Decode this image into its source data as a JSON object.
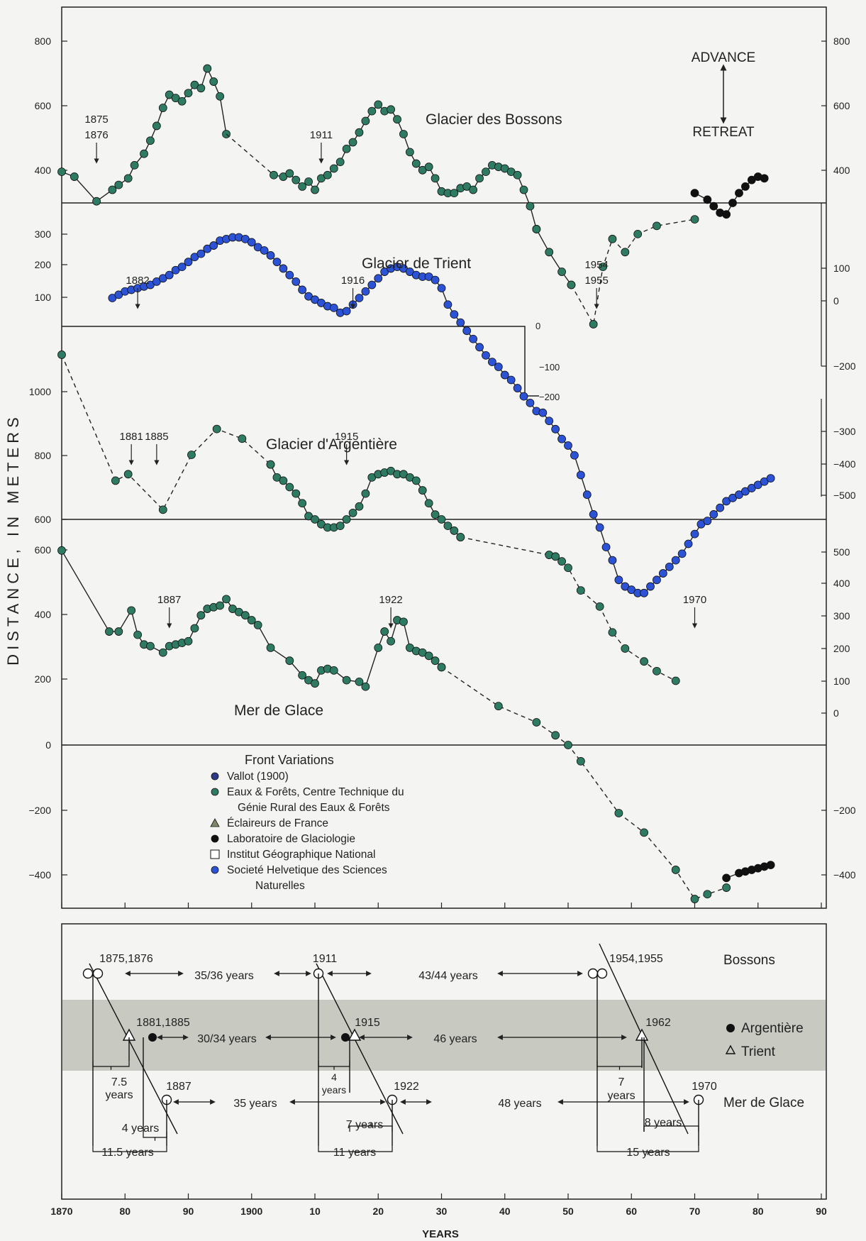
{
  "chart_data": {
    "type": "line",
    "ylabel": "DISTANCE, IN METERS",
    "xlabel": "YEARS",
    "x_ticks": [
      "1870",
      "80",
      "90",
      "1900",
      "10",
      "20",
      "30",
      "40",
      "50",
      "60",
      "70",
      "80",
      "90"
    ],
    "advance_label": "ADVANCE",
    "retreat_label": "RETREAT",
    "legend_title": "Front Variations",
    "legend": [
      {
        "name": "Vallot (1900)",
        "color": "#2d3a86",
        "marker": "dot"
      },
      {
        "name": "Eaux & Forêts, Centre Technique du",
        "name2": "Génie Rural des Eaux & Forêts",
        "color": "#2e7a62",
        "marker": "dot"
      },
      {
        "name": "Éclaireurs de France",
        "color": "#7d8a6a",
        "marker": "triangle"
      },
      {
        "name": "Laboratoire de Glaciologie",
        "color": "#111111",
        "marker": "dot"
      },
      {
        "name": "Institut Géographique National",
        "color": "#ffffff",
        "marker": "square"
      },
      {
        "name": "Societé Helvetique des Sciences",
        "name2": "Naturelles",
        "color": "#2c52d6",
        "marker": "dot"
      }
    ],
    "panels": [
      {
        "name": "Glacier des Bossons",
        "left_ticks": [
          "800",
          "600",
          "400"
        ],
        "right_ticks": [
          "800",
          "600",
          "400"
        ],
        "annotations": [
          {
            "text": "1875",
            "text2": "1876",
            "x": 1875.5
          },
          {
            "text": "1911",
            "x": 1911
          }
        ],
        "series": [
          {
            "x": [
              1870,
              1872,
              1875.5,
              1878,
              1879,
              1880.5,
              1881.5,
              1883,
              1884,
              1885,
              1886,
              1887,
              1888,
              1889,
              1890,
              1891,
              1892,
              1893,
              1894,
              1895,
              1896
            ],
            "y": [
              405,
              390,
              315,
              350,
              365,
              385,
              425,
              460,
              500,
              545,
              600,
              640,
              630,
              620,
              645,
              670,
              660,
              720,
              680,
              635,
              520
            ],
            "style": "solid",
            "color": "#2e7a62"
          },
          {
            "x": [
              1896,
              1903.5
            ],
            "y": [
              520,
              395
            ],
            "style": "dashed"
          },
          {
            "x": [
              1903.5,
              1905,
              1906,
              1907,
              1908,
              1909,
              1910,
              1911,
              1912,
              1913,
              1914,
              1915,
              1916,
              1917,
              1918,
              1919,
              1920,
              1921,
              1922,
              1923,
              1924,
              1925,
              1926,
              1927,
              1928,
              1929,
              1930,
              1931,
              1932,
              1933,
              1934,
              1935,
              1936,
              1937,
              1938,
              1939,
              1940,
              1941,
              1942,
              1943,
              1944,
              1945
            ],
            "y": [
              395,
              390,
              400,
              380,
              360,
              375,
              350,
              385,
              395,
              415,
              435,
              475,
              495,
              525,
              560,
              590,
              610,
              590,
              595,
              565,
              520,
              465,
              430,
              410,
              420,
              385,
              345,
              340,
              340,
              355,
              360,
              350,
              385,
              405,
              425,
              420,
              415,
              405,
              395,
              350,
              300,
              230
            ],
            "style": "solid",
            "color": "#2e7a62"
          },
          {
            "x": [
              1945,
              1947,
              1949,
              1950.5
            ],
            "y": [
              230,
              160,
              100,
              60
            ],
            "style": "solid",
            "color": "#2e7a62"
          },
          {
            "x": [
              1950.5,
              1954,
              1955.5,
              1957,
              1959,
              1961,
              1964,
              1970
            ],
            "y": [
              60,
              -60,
              115,
              200,
              160,
              215,
              240,
              260
            ],
            "style": "dashed",
            "color": "#2e7a62"
          },
          {
            "x": [
              1970,
              1972,
              1973,
              1974,
              1975,
              1976,
              1977,
              1978,
              1979,
              1980,
              1981
            ],
            "y": [
              340,
              320,
              300,
              280,
              275,
              310,
              340,
              360,
              380,
              390,
              385
            ],
            "style": "solid",
            "color": "#111"
          }
        ]
      },
      {
        "name": "Glacier de Trient",
        "left_ticks": [
          "300",
          "200",
          "100"
        ],
        "right_ticks": [
          "100",
          "0",
          "-200"
        ],
        "annotations": [
          {
            "text": "1882",
            "x": 1882
          },
          {
            "text": "1916",
            "x": 1916
          },
          {
            "text": "1954",
            "text2": "1955",
            "x": 1954.5
          }
        ],
        "zero_label": "0",
        "minus100_label": "−100",
        "minus200_label": "−200",
        "series": [
          {
            "x": [
              1878,
              1879,
              1880,
              1881,
              1882,
              1883,
              1884,
              1885,
              1886,
              1887,
              1888,
              1889,
              1890,
              1891,
              1892,
              1893,
              1894,
              1895,
              1896,
              1897,
              1898,
              1899,
              1900,
              1901,
              1902,
              1903,
              1904,
              1905,
              1906,
              1907,
              1908,
              1909,
              1910,
              1911,
              1912,
              1913,
              1914,
              1915,
              1916,
              1917,
              1918,
              1919,
              1920,
              1921,
              1922,
              1923,
              1924,
              1925,
              1926,
              1927,
              1928,
              1929,
              1930,
              1931,
              1932,
              1933,
              1934,
              1935,
              1936,
              1937,
              1938,
              1939,
              1940,
              1941,
              1942,
              1943,
              1944,
              1945,
              1946,
              1947,
              1948,
              1949,
              1950,
              1951,
              1952,
              1953,
              1954,
              1955,
              1956,
              1957,
              1958,
              1959,
              1960,
              1961,
              1962,
              1963,
              1964,
              1965,
              1966,
              1967,
              1968,
              1969,
              1970,
              1971,
              1972,
              1973,
              1974,
              1975,
              1976,
              1977,
              1978,
              1979,
              1980,
              1981,
              1982
            ],
            "y": [
              0,
              10,
              20,
              25,
              30,
              35,
              40,
              50,
              60,
              70,
              85,
              95,
              110,
              125,
              135,
              150,
              160,
              175,
              180,
              185,
              185,
              180,
              170,
              155,
              145,
              130,
              110,
              90,
              70,
              50,
              25,
              5,
              -5,
              -15,
              -25,
              -30,
              -45,
              -40,
              -20,
              0,
              20,
              40,
              60,
              80,
              90,
              95,
              90,
              80,
              70,
              65,
              65,
              55,
              30,
              -20,
              -50,
              -75,
              -100,
              -125,
              -150,
              -175,
              -195,
              -210,
              -235,
              -250,
              -275,
              -300,
              -320,
              -345,
              -350,
              -375,
              -400,
              -430,
              -450,
              -480,
              -540,
              -600,
              -660,
              -700,
              -760,
              -800,
              -860,
              -880,
              -890,
              -900,
              -900,
              -880,
              -860,
              -840,
              -820,
              -800,
              -780,
              -750,
              -720,
              -690,
              -680,
              -660,
              -640,
              -620,
              -610,
              -600,
              -590,
              -580,
              -570,
              -560,
              -550
            ],
            "style": "solid",
            "color": "#2c52d6"
          }
        ]
      },
      {
        "name": "Glacier d'Argentière",
        "left_ticks": [
          "1000",
          "800",
          "600"
        ],
        "right_ticks": [
          "−300",
          "−400",
          "−500",
          "500",
          "400",
          "300",
          "200",
          "100",
          "0"
        ],
        "annotations": [
          {
            "text": "1881",
            "x": 1881
          },
          {
            "text": "1885",
            "x": 1885
          },
          {
            "text": "1915",
            "x": 1915
          }
        ],
        "series": [
          {
            "x": [
              1870,
              1878.5,
              1880.5,
              1886,
              1890.5,
              1894.5,
              1898.5,
              1903
            ],
            "y": [
              1110,
              720,
              740,
              630,
              800,
              880,
              850,
              770
            ],
            "style": "dashed",
            "color": "#2e7a62"
          },
          {
            "x": [
              1903,
              1904,
              1905,
              1906,
              1907,
              1908,
              1909,
              1910,
              1911,
              1912,
              1913,
              1914,
              1915,
              1916,
              1917,
              1918,
              1919,
              1920,
              1921,
              1922,
              1923,
              1924,
              1925,
              1926,
              1927,
              1928,
              1929,
              1930,
              1931,
              1932,
              1933
            ],
            "y": [
              770,
              730,
              720,
              700,
              680,
              650,
              610,
              600,
              585,
              575,
              575,
              580,
              600,
              620,
              640,
              680,
              730,
              740,
              745,
              750,
              740,
              740,
              730,
              720,
              690,
              650,
              615,
              600,
              580,
              565,
              545
            ],
            "style": "solid",
            "color": "#2e7a62"
          },
          {
            "x": [
              1933,
              1947,
              1948,
              1949,
              1950,
              1952,
              1955,
              1957,
              1959,
              1962,
              1964,
              1967
            ],
            "y": [
              545,
              490,
              485,
              470,
              450,
              380,
              330,
              250,
              200,
              160,
              130,
              100
            ],
            "style": "dashed",
            "color": "#2e7a62"
          }
        ]
      },
      {
        "name": "Mer de Glace",
        "left_ticks": [
          "600",
          "400",
          "200",
          "0",
          "−200",
          "−400"
        ],
        "right_ticks": [
          "−200",
          "−400"
        ],
        "annotations": [
          {
            "text": "1887",
            "x": 1887
          },
          {
            "text": "1922",
            "x": 1922
          },
          {
            "text": "1970",
            "x": 1970
          }
        ],
        "series": [
          {
            "x": [
              1870,
              1877.5,
              1879,
              1881,
              1882,
              1883,
              1884,
              1886,
              1887,
              1888,
              1889,
              1890,
              1891,
              1892,
              1893,
              1894,
              1895,
              1896,
              1897,
              1898,
              1899,
              1900,
              1901,
              1903,
              1906,
              1908,
              1909,
              1910,
              1911,
              1912,
              1913,
              1915,
              1917,
              1918,
              1920,
              1921,
              1922,
              1923,
              1924,
              1925,
              1926,
              1927,
              1928,
              1929,
              1930
            ],
            "y": [
              600,
              350,
              350,
              415,
              340,
              310,
              305,
              285,
              305,
              310,
              315,
              320,
              360,
              400,
              420,
              425,
              430,
              450,
              420,
              410,
              400,
              385,
              370,
              300,
              260,
              215,
              200,
              190,
              230,
              235,
              230,
              200,
              195,
              180,
              300,
              350,
              320,
              385,
              380,
              300,
              290,
              285,
              275,
              260,
              240
            ],
            "style": "solid",
            "color": "#2e7a62"
          },
          {
            "x": [
              1930,
              1939,
              1945,
              1948,
              1950,
              1952,
              1958,
              1962,
              1967,
              1970,
              1972,
              1975
            ],
            "y": [
              240,
              120,
              70,
              30,
              0,
              -50,
              -210,
              -270,
              -385,
              -475,
              -460,
              -440
            ],
            "style": "dashed",
            "color": "#2e7a62"
          },
          {
            "x": [
              1975,
              1977,
              1978,
              1979,
              1980,
              1981,
              1982
            ],
            "y": [
              -410,
              -395,
              -390,
              -385,
              -380,
              -375,
              -370
            ],
            "style": "solid",
            "color": "#111"
          }
        ]
      }
    ],
    "timeline": {
      "rows": [
        "Bossons",
        "Argentière",
        "Trient",
        "Mer de Glace"
      ],
      "legend": [
        {
          "symbol": "●",
          "name": "Argentière"
        },
        {
          "symbol": "△",
          "name": "Trient"
        }
      ],
      "events": [
        {
          "label": "1875,1876"
        },
        {
          "label": "1911"
        },
        {
          "label": "1954,1955"
        },
        {
          "label": "1881,1885"
        },
        {
          "label": "1915"
        },
        {
          "label": "1962"
        },
        {
          "label": "1887"
        },
        {
          "label": "1922"
        },
        {
          "label": "1970"
        }
      ],
      "intervals": [
        {
          "label": "35/36 years"
        },
        {
          "label": "43/44 years"
        },
        {
          "label": "30/34 years"
        },
        {
          "label": "46 years"
        },
        {
          "label": "35 years"
        },
        {
          "label": "48 years"
        },
        {
          "label": "7.5"
        },
        {
          "label": "years"
        },
        {
          "label": "4"
        },
        {
          "label": "years"
        },
        {
          "label": "7"
        },
        {
          "label": "years"
        },
        {
          "label": "4 years"
        },
        {
          "label": "11.5 years"
        },
        {
          "label": "7 years"
        },
        {
          "label": "11 years"
        },
        {
          "label": "8 years"
        },
        {
          "label": "15 years"
        }
      ]
    }
  }
}
